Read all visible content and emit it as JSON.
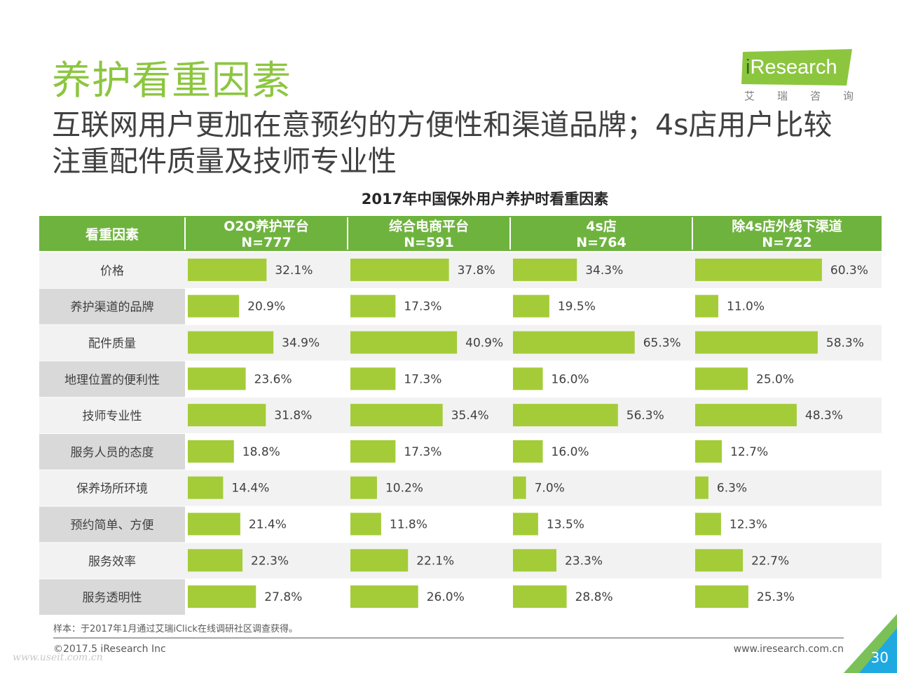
{
  "header": {
    "title": "养护看重因素",
    "subtitle": "互联网用户更加在意预约的方便性和渠道品牌；4s店用户比较注重配件质量及技师专业性"
  },
  "logo": {
    "text_i": "i",
    "text_rest": "Research",
    "cn_chars": [
      "艾",
      "瑞",
      "咨",
      "询"
    ]
  },
  "chart_data": {
    "type": "table",
    "title": "2017年中国保外用户养护时看重因素",
    "row_header_label": "看重因素",
    "columns": [
      {
        "name": "O2O养护平台",
        "n": "N=777",
        "values": [
          32.1,
          20.9,
          34.9,
          23.6,
          31.8,
          18.8,
          14.4,
          21.4,
          22.3,
          27.8
        ]
      },
      {
        "name": "综合电商平台",
        "n": "N=591",
        "values": [
          37.8,
          17.3,
          40.9,
          17.3,
          35.4,
          17.3,
          10.2,
          11.8,
          22.1,
          26.0
        ]
      },
      {
        "name": "4s店",
        "n": "N=764",
        "values": [
          34.3,
          19.5,
          65.3,
          16.0,
          56.3,
          16.0,
          7.0,
          13.5,
          23.3,
          28.8
        ]
      },
      {
        "name": "除4s店外线下渠道",
        "n": "N=722",
        "values": [
          60.3,
          11.0,
          58.3,
          25.0,
          48.3,
          12.7,
          6.3,
          12.3,
          22.7,
          25.3
        ]
      }
    ],
    "rows": [
      "价格",
      "养护渠道的品牌",
      "配件质量",
      "地理位置的便利性",
      "技师专业性",
      "服务人员的态度",
      "保养场所环境",
      "预约简单、方便",
      "服务效率",
      "服务透明性"
    ],
    "value_suffix": "%",
    "bar_color": "#a4cc38",
    "header_color": "#6fb33f"
  },
  "footer": {
    "note": "样本：于2017年1月通过艾瑞iClick在线调研社区调查获得。",
    "copyright": "©2017.5 iResearch Inc",
    "website": "www.iresearch.com.cn",
    "watermark": "www.useit.com.cn",
    "page_number": "30"
  },
  "colors": {
    "accent": "#8cc63f",
    "corner": "#1fa9e1"
  }
}
